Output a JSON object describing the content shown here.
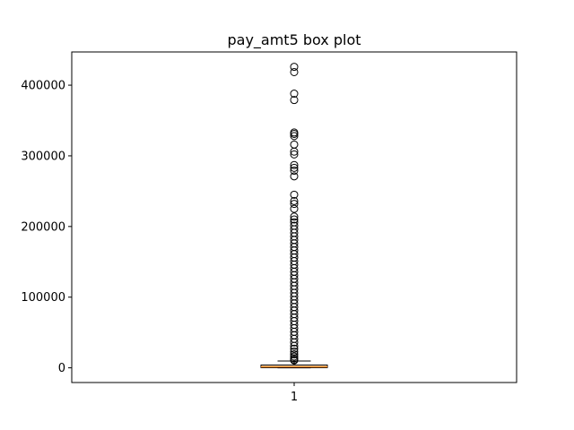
{
  "chart_data": {
    "type": "box",
    "title": "pay_amt5 box plot",
    "xlabel": "",
    "ylabel": "",
    "categories": [
      "1"
    ],
    "ylim": [
      -20800,
      447000
    ],
    "yticks": [
      {
        "value": 0,
        "label": "0"
      },
      {
        "value": 100000,
        "label": "100000"
      },
      {
        "value": 200000,
        "label": "200000"
      },
      {
        "value": 300000,
        "label": "300000"
      },
      {
        "value": 400000,
        "label": "400000"
      }
    ],
    "box": {
      "whisker_low": 0,
      "q1": 250,
      "median": 1500,
      "q3": 4000,
      "whisker_high": 9600
    },
    "outliers": [
      426000,
      418500,
      388000,
      379000,
      333000,
      331000,
      328000,
      316000,
      306000,
      302000,
      287000,
      283000,
      279000,
      271000,
      245000,
      236000,
      232000,
      225000,
      214000,
      210000,
      206000,
      201000,
      196000,
      191000,
      186000,
      181000,
      176000,
      171000,
      166000,
      161000,
      156000,
      151000,
      146000,
      141000,
      136000,
      131000,
      126000,
      121000,
      116000,
      111000,
      106000,
      101000,
      96000,
      91000,
      86000,
      81000,
      76000,
      71000,
      66000,
      61000,
      56000,
      51000,
      46000,
      41000,
      36000,
      31000,
      27000,
      23000,
      19000,
      16000,
      13500,
      11500,
      10500
    ],
    "grid": false,
    "colors": {
      "box_edge": "#000000",
      "median": "#ff7f0e",
      "outlier_edge": "#000000"
    }
  }
}
